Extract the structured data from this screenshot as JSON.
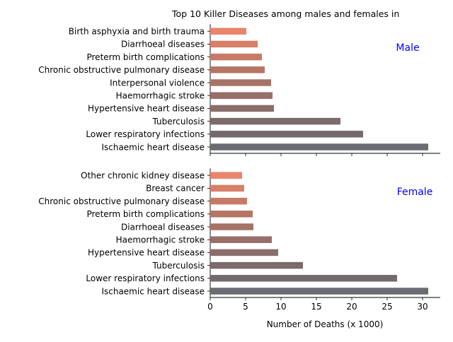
{
  "chart_data": {
    "type": "bar",
    "orientation": "horizontal",
    "title": "Top 10 Killer Diseases among males and females in",
    "xlabel": "Number of Deaths (x 1000)",
    "xlim": [
      0,
      32.5
    ],
    "xticks": [
      0,
      5,
      10,
      15,
      20,
      25,
      30
    ],
    "grid": false,
    "panels": [
      {
        "label": "Male",
        "label_color": "#0000ff",
        "categories": [
          "Ischaemic heart disease",
          "Lower respiratory infections",
          "Tuberculosis",
          "Hypertensive heart disease",
          "Haemorrhagic stroke",
          "Interpersonal violence",
          "Chronic obstructive pulmonary disease",
          "Preterm birth complications",
          "Diarrhoeal diseases",
          "Birth asphyxia and birth trauma"
        ],
        "values": [
          30.8,
          21.6,
          18.4,
          9.0,
          8.8,
          8.6,
          7.7,
          7.3,
          6.7,
          5.1
        ]
      },
      {
        "label": "Female",
        "label_color": "#0000ff",
        "categories": [
          "Ischaemic heart disease",
          "Lower respiratory infections",
          "Tuberculosis",
          "Hypertensive heart disease",
          "Haemorrhagic stroke",
          "Diarrhoeal diseases",
          "Preterm birth complications",
          "Chronic obstructive pulmonary disease",
          "Breast cancer",
          "Other chronic kidney disease"
        ],
        "values": [
          30.8,
          26.4,
          13.1,
          9.6,
          8.7,
          6.1,
          6.0,
          5.2,
          4.8,
          4.5
        ]
      }
    ],
    "bar_colors": [
      "#6b6b73",
      "#746a6e",
      "#7d6a6c",
      "#8a6d6b",
      "#976e69",
      "#a67366",
      "#b57664",
      "#c77b67",
      "#d77f69",
      "#e8856b"
    ]
  }
}
